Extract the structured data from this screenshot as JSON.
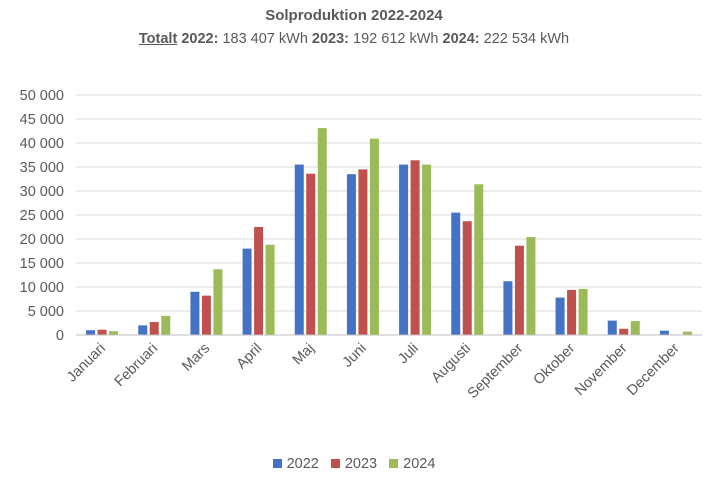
{
  "chart_data": {
    "type": "bar",
    "title": "Solproduktion 2022-2024",
    "subtitle": {
      "prefix": "Totalt",
      "parts": [
        {
          "year": "2022:",
          "value": "183 407 kWh"
        },
        {
          "year": "2023:",
          "value": "192 612 kWh"
        },
        {
          "year": "2024:",
          "value": "222 534 kWh"
        }
      ]
    },
    "categories": [
      "Januari",
      "Februari",
      "Mars",
      "April",
      "Maj",
      "Juni",
      "Juli",
      "Augusti",
      "September",
      "Oktober",
      "November",
      "December"
    ],
    "series": [
      {
        "name": "2022",
        "color": "#4472c4",
        "values": [
          1000,
          2000,
          9000,
          18000,
          35500,
          33500,
          35500,
          25500,
          11200,
          7800,
          3000,
          900
        ]
      },
      {
        "name": "2023",
        "color": "#c0504d",
        "values": [
          1100,
          2700,
          8200,
          22500,
          33600,
          34500,
          36400,
          23700,
          18600,
          9400,
          1300,
          0
        ]
      },
      {
        "name": "2024",
        "color": "#9bbb59",
        "values": [
          800,
          4000,
          13700,
          18800,
          43100,
          40900,
          35500,
          31400,
          20400,
          9600,
          2900,
          700
        ]
      }
    ],
    "ylim": [
      0,
      50000
    ],
    "yticks": [
      0,
      5000,
      10000,
      15000,
      20000,
      25000,
      30000,
      35000,
      40000,
      45000,
      50000
    ],
    "ytick_labels": [
      "0",
      "5 000",
      "10 000",
      "15 000",
      "20 000",
      "25 000",
      "30 000",
      "35 000",
      "40 000",
      "45 000",
      "50 000"
    ],
    "grid": true,
    "legend_position": "bottom",
    "xlabel": "",
    "ylabel": ""
  }
}
